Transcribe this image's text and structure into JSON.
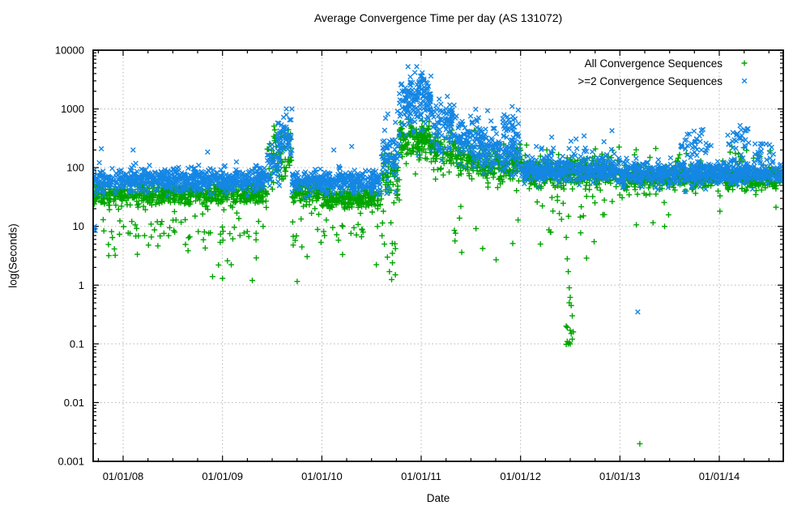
{
  "title": "Average Convergence Time per day (AS 131072)",
  "chart_data": {
    "type": "scatter",
    "title": "Average Convergence Time per day (AS 131072)",
    "xlabel": "Date",
    "ylabel": "log(Seconds)",
    "x_unit": "decimal_year",
    "x_range": [
      2007.698,
      2014.644
    ],
    "y_scale": "log10",
    "y_log_range": [
      -3,
      4
    ],
    "grid": true,
    "legend_position": "top-right-inside",
    "x_ticks": [
      {
        "year": 2008,
        "label": "01/01/08"
      },
      {
        "year": 2009,
        "label": "01/01/09"
      },
      {
        "year": 2010,
        "label": "01/01/10"
      },
      {
        "year": 2011,
        "label": "01/01/11"
      },
      {
        "year": 2012,
        "label": "01/01/12"
      },
      {
        "year": 2013,
        "label": "01/01/13"
      },
      {
        "year": 2014,
        "label": "01/01/14"
      }
    ],
    "x_minor_step_years": 0.25,
    "y_ticks": [
      {
        "log": 4,
        "label": "10000"
      },
      {
        "log": 3,
        "label": "1000"
      },
      {
        "log": 2,
        "label": "100"
      },
      {
        "log": 1,
        "label": "10"
      },
      {
        "log": 0,
        "label": "1"
      },
      {
        "log": -1,
        "label": "0.1"
      },
      {
        "log": -2,
        "label": "0.01"
      },
      {
        "log": -3,
        "label": "0.001"
      }
    ],
    "seed": 11,
    "bands_format": [
      "from_year",
      "to_year",
      "n_points",
      "log10_mean",
      "log10_std",
      "clip_log_min_optional",
      "clip_log_max_optional"
    ],
    "series": [
      {
        "name": "All Convergence Sequences",
        "marker": "plus",
        "color": "#00a400",
        "bands": [
          [
            2007.7,
            2009.45,
            640,
            1.55,
            0.09
          ],
          [
            2007.7,
            2009.45,
            85,
            1.0,
            0.28
          ],
          [
            2009.45,
            2009.7,
            70,
            2.18,
            0.28
          ],
          [
            2009.7,
            2010.0,
            110,
            1.6,
            0.1
          ],
          [
            2009.7,
            2010.0,
            14,
            1.0,
            0.3
          ],
          [
            2010.0,
            2010.6,
            215,
            1.48,
            0.09
          ],
          [
            2010.0,
            2010.78,
            28,
            0.8,
            0.3
          ],
          [
            2010.6,
            2010.78,
            60,
            1.85,
            0.2
          ],
          [
            2010.78,
            2011.1,
            150,
            2.45,
            0.17,
            null,
            2.82
          ],
          [
            2011.1,
            2011.35,
            85,
            2.28,
            0.17
          ],
          [
            2011.35,
            2011.6,
            85,
            2.1,
            0.15
          ],
          [
            2011.6,
            2012.0,
            140,
            2.05,
            0.14
          ],
          [
            2011.2,
            2012.0,
            12,
            0.95,
            0.3
          ],
          [
            2012.0,
            2013.0,
            350,
            1.92,
            0.13
          ],
          [
            2012.0,
            2013.0,
            24,
            1.25,
            0.25
          ],
          [
            2012.0,
            2013.0,
            18,
            2.2,
            0.12
          ],
          [
            2013.0,
            2014.64,
            590,
            1.83,
            0.1
          ],
          [
            2013.0,
            2014.64,
            20,
            2.12,
            0.12
          ],
          [
            2013.0,
            2014.6,
            14,
            1.4,
            0.2
          ],
          [
            2014.1,
            2014.3,
            12,
            2.25,
            0.15
          ]
        ],
        "outliers": [
          [
            2008.9,
            1.4
          ],
          [
            2008.96,
            2.2
          ],
          [
            2009.0,
            1.3
          ],
          [
            2009.05,
            2.6
          ],
          [
            2009.3,
            1.2
          ],
          [
            2009.34,
            2.9
          ],
          [
            2010.63,
            5
          ],
          [
            2010.66,
            3
          ],
          [
            2010.68,
            1.7
          ],
          [
            2010.71,
            2.4
          ],
          [
            2010.74,
            1.5
          ],
          [
            2012.46,
            6.5
          ],
          [
            2012.47,
            2.8
          ],
          [
            2012.48,
            1.7
          ],
          [
            2012.49,
            0.9
          ],
          [
            2012.5,
            0.62
          ],
          [
            2012.49,
            0.5
          ],
          [
            2012.51,
            0.45
          ],
          [
            2012.52,
            0.3
          ],
          [
            2012.46,
            0.2
          ],
          [
            2012.47,
            0.19
          ],
          [
            2012.5,
            0.17
          ],
          [
            2012.51,
            0.15
          ],
          [
            2012.47,
            0.11
          ],
          [
            2012.48,
            0.1
          ],
          [
            2012.49,
            0.105
          ],
          [
            2012.5,
            0.1
          ],
          [
            2012.46,
            0.098
          ],
          [
            2012.52,
            0.12
          ],
          [
            2012.53,
            0.16
          ],
          [
            2013.2,
            0.002
          ],
          [
            2013.45,
            10
          ],
          [
            2012.74,
            5.5
          ],
          [
            2012.2,
            5
          ],
          [
            2012.3,
            8
          ]
        ]
      },
      {
        "name": ">=2 Convergence Sequences",
        "marker": "cross",
        "color": "#1486e4",
        "bands": [
          [
            2007.7,
            2009.45,
            640,
            1.78,
            0.1
          ],
          [
            2009.45,
            2009.58,
            40,
            2.1,
            0.22
          ],
          [
            2009.55,
            2009.7,
            55,
            2.55,
            0.22,
            null,
            3.0
          ],
          [
            2009.7,
            2010.6,
            330,
            1.76,
            0.09
          ],
          [
            2010.6,
            2010.78,
            70,
            2.2,
            0.28
          ],
          [
            2010.78,
            2011.1,
            160,
            3.15,
            0.25,
            2.2,
            3.72
          ],
          [
            2011.1,
            2011.35,
            90,
            2.75,
            0.22
          ],
          [
            2011.35,
            2011.6,
            90,
            2.5,
            0.22
          ],
          [
            2011.6,
            2012.0,
            150,
            2.28,
            0.2
          ],
          [
            2011.82,
            2011.98,
            25,
            2.72,
            0.15
          ],
          [
            2012.0,
            2013.0,
            360,
            1.95,
            0.1
          ],
          [
            2012.15,
            2012.95,
            30,
            2.3,
            0.15
          ],
          [
            2013.0,
            2014.64,
            600,
            1.9,
            0.1
          ],
          [
            2013.6,
            2013.92,
            40,
            2.42,
            0.18
          ],
          [
            2014.08,
            2014.3,
            28,
            2.48,
            0.15
          ],
          [
            2014.35,
            2014.55,
            18,
            2.28,
            0.12
          ]
        ],
        "outliers": [
          [
            2007.705,
            9
          ],
          [
            2007.712,
            10
          ],
          [
            2007.72,
            8.5
          ],
          [
            2007.78,
            210
          ],
          [
            2008.1,
            200
          ],
          [
            2008.85,
            185
          ],
          [
            2010.12,
            200
          ],
          [
            2010.3,
            230
          ],
          [
            2013.18,
            0.35
          ]
        ]
      }
    ],
    "colors": {
      "grid": "#b4b4b4",
      "axis": "#000000",
      "background": "#ffffff"
    }
  }
}
